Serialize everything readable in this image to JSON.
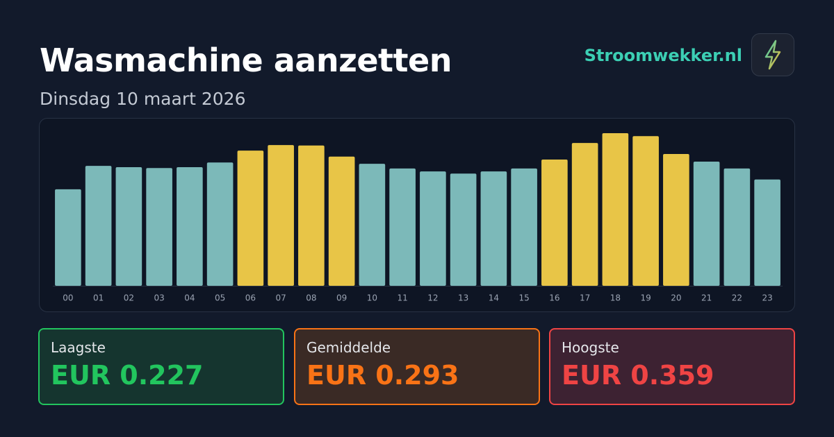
{
  "header": {
    "title": "Wasmachine aanzetten",
    "subtitle": "Dinsdag 10 maart 2026",
    "brand": "Stroomwekker.nl"
  },
  "chart_data": {
    "type": "bar",
    "categories": [
      "00",
      "01",
      "02",
      "03",
      "04",
      "05",
      "06",
      "07",
      "08",
      "09",
      "10",
      "11",
      "12",
      "13",
      "14",
      "15",
      "16",
      "17",
      "18",
      "19",
      "20",
      "21",
      "22",
      "23"
    ],
    "values": [
      0.227,
      0.282,
      0.279,
      0.277,
      0.279,
      0.29,
      0.318,
      0.331,
      0.33,
      0.304,
      0.287,
      0.276,
      0.269,
      0.264,
      0.269,
      0.276,
      0.297,
      0.336,
      0.359,
      0.352,
      0.31,
      0.292,
      0.276,
      0.25
    ],
    "colors": [
      "#7cb9b9",
      "#7cb9b9",
      "#7cb9b9",
      "#7cb9b9",
      "#7cb9b9",
      "#7cb9b9",
      "#e8c547",
      "#e8c547",
      "#e8c547",
      "#e8c547",
      "#7cb9b9",
      "#7cb9b9",
      "#7cb9b9",
      "#7cb9b9",
      "#7cb9b9",
      "#7cb9b9",
      "#e8c547",
      "#e8c547",
      "#e8c547",
      "#e8c547",
      "#e8c547",
      "#7cb9b9",
      "#7cb9b9",
      "#7cb9b9"
    ],
    "ylim": [
      0,
      0.359
    ]
  },
  "stats": [
    {
      "label": "Laagste",
      "value": "EUR 0.227"
    },
    {
      "label": "Gemiddelde",
      "value": "EUR 0.293"
    },
    {
      "label": "Hoogste",
      "value": "EUR 0.359"
    }
  ]
}
